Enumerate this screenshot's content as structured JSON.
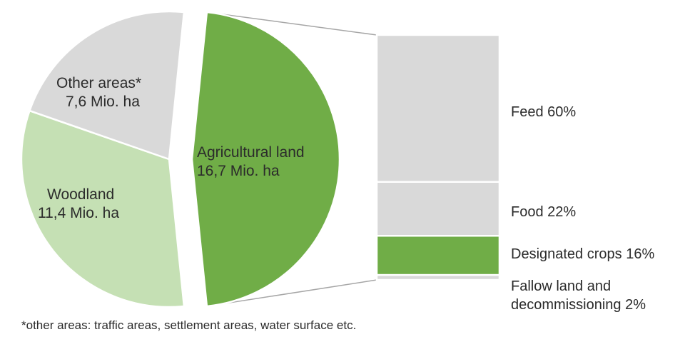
{
  "chart_data": [
    {
      "type": "pie",
      "slices": [
        {
          "label": "Agricultural land",
          "value": 16.7,
          "value_label": "16,7 Mio. ha",
          "color": "#70ad47",
          "exploded": true
        },
        {
          "label": "Woodland",
          "value": 11.4,
          "value_label": "11,4 Mio. ha",
          "color": "#c5e0b4",
          "exploded": false
        },
        {
          "label": "Other areas*",
          "value": 7.6,
          "value_label": "7,6 Mio. ha",
          "color": "#d9d9d9",
          "exploded": false
        }
      ]
    },
    {
      "type": "bar",
      "stacked": true,
      "breakdown_of": "Agricultural land",
      "segments": [
        {
          "label": "Feed 60%",
          "value": 60,
          "color": "#d9d9d9"
        },
        {
          "label": "Food 22%",
          "value": 22,
          "color": "#d9d9d9"
        },
        {
          "label": "Designated crops 16%",
          "value": 16,
          "color": "#70ad47"
        },
        {
          "label": "Fallow land and decommissioning 2%",
          "value": 2,
          "color": "#d9d9d9"
        }
      ]
    }
  ],
  "footnote": "*other areas: traffic areas, settlement areas, water surface etc."
}
